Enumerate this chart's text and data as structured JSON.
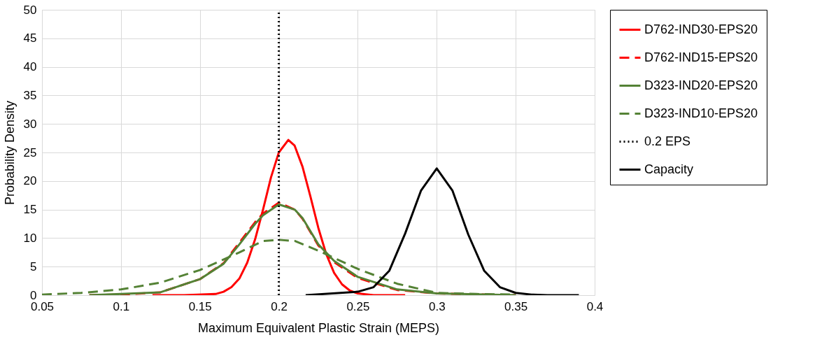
{
  "chart_data": {
    "type": "line",
    "xlabel": "Maximum Equivalent Plastic Strain (MEPS)",
    "ylabel": "Probability Density",
    "xlim": [
      0.05,
      0.4
    ],
    "xticks": [
      0.05,
      0.1,
      0.15,
      0.2,
      0.25,
      0.3,
      0.35,
      0.4
    ],
    "ylim": [
      0,
      50
    ],
    "yticks": [
      0,
      5,
      10,
      15,
      20,
      25,
      30,
      35,
      40,
      45,
      50
    ],
    "grid": true,
    "legend": "right",
    "series": [
      {
        "name": "D762-IND30-EPS20",
        "color": "#ff0000",
        "line_style": "solid",
        "x": [
          0.12,
          0.14,
          0.16,
          0.165,
          0.17,
          0.175,
          0.18,
          0.185,
          0.19,
          0.195,
          0.2,
          0.206,
          0.21,
          0.215,
          0.22,
          0.225,
          0.23,
          0.235,
          0.24,
          0.245,
          0.25,
          0.26,
          0.28
        ],
        "values": [
          0,
          0,
          0.2,
          0.6,
          1.4,
          2.9,
          5.7,
          9.8,
          15.0,
          20.6,
          25.0,
          27.2,
          26.2,
          22.5,
          17.3,
          11.8,
          7.2,
          3.9,
          1.9,
          0.8,
          0.3,
          0,
          0
        ]
      },
      {
        "name": "D762-IND15-EPS20",
        "color": "#ff0000",
        "line_style": "dashed",
        "x": [
          0.08,
          0.1,
          0.125,
          0.15,
          0.165,
          0.175,
          0.185,
          0.19,
          0.2,
          0.21,
          0.215,
          0.225,
          0.235,
          0.25,
          0.275,
          0.3,
          0.35
        ],
        "values": [
          0,
          0.1,
          0.5,
          2.8,
          5.6,
          9.2,
          12.8,
          14.3,
          16.2,
          15.0,
          13.4,
          8.7,
          5.8,
          3.0,
          0.9,
          0.3,
          0
        ]
      },
      {
        "name": "D323-IND20-EPS20",
        "color": "#548235",
        "line_style": "solid",
        "x": [
          0.08,
          0.1,
          0.125,
          0.15,
          0.165,
          0.175,
          0.185,
          0.19,
          0.2,
          0.21,
          0.215,
          0.225,
          0.235,
          0.25,
          0.275,
          0.3,
          0.35
        ],
        "values": [
          0,
          0.2,
          0.5,
          2.8,
          5.5,
          8.9,
          12.5,
          14.0,
          15.9,
          15.0,
          13.5,
          8.9,
          6.0,
          3.2,
          1.0,
          0.3,
          0
        ]
      },
      {
        "name": "D323-IND10-EPS20",
        "color": "#548235",
        "line_style": "dashed",
        "x": [
          0.05,
          0.075,
          0.1,
          0.125,
          0.15,
          0.175,
          0.19,
          0.2,
          0.21,
          0.225,
          0.25,
          0.275,
          0.3,
          0.325,
          0.35
        ],
        "values": [
          0.1,
          0.4,
          1.0,
          2.2,
          4.4,
          7.5,
          9.5,
          9.7,
          9.5,
          7.8,
          4.6,
          2.0,
          0.4,
          0.2,
          0.1
        ]
      },
      {
        "name": "0.2 EPS",
        "color": "#000000",
        "line_style": "dotted",
        "x": [
          0.2,
          0.2
        ],
        "values": [
          0,
          50
        ]
      },
      {
        "name": "Capacity",
        "color": "#000000",
        "line_style": "solid",
        "x": [
          0.217,
          0.25,
          0.26,
          0.27,
          0.28,
          0.29,
          0.3,
          0.31,
          0.32,
          0.33,
          0.34,
          0.35,
          0.36,
          0.37,
          0.39
        ],
        "values": [
          0,
          0.6,
          1.4,
          4.3,
          10.8,
          18.3,
          22.2,
          18.3,
          10.6,
          4.3,
          1.4,
          0.4,
          0.1,
          0,
          0
        ]
      }
    ]
  }
}
